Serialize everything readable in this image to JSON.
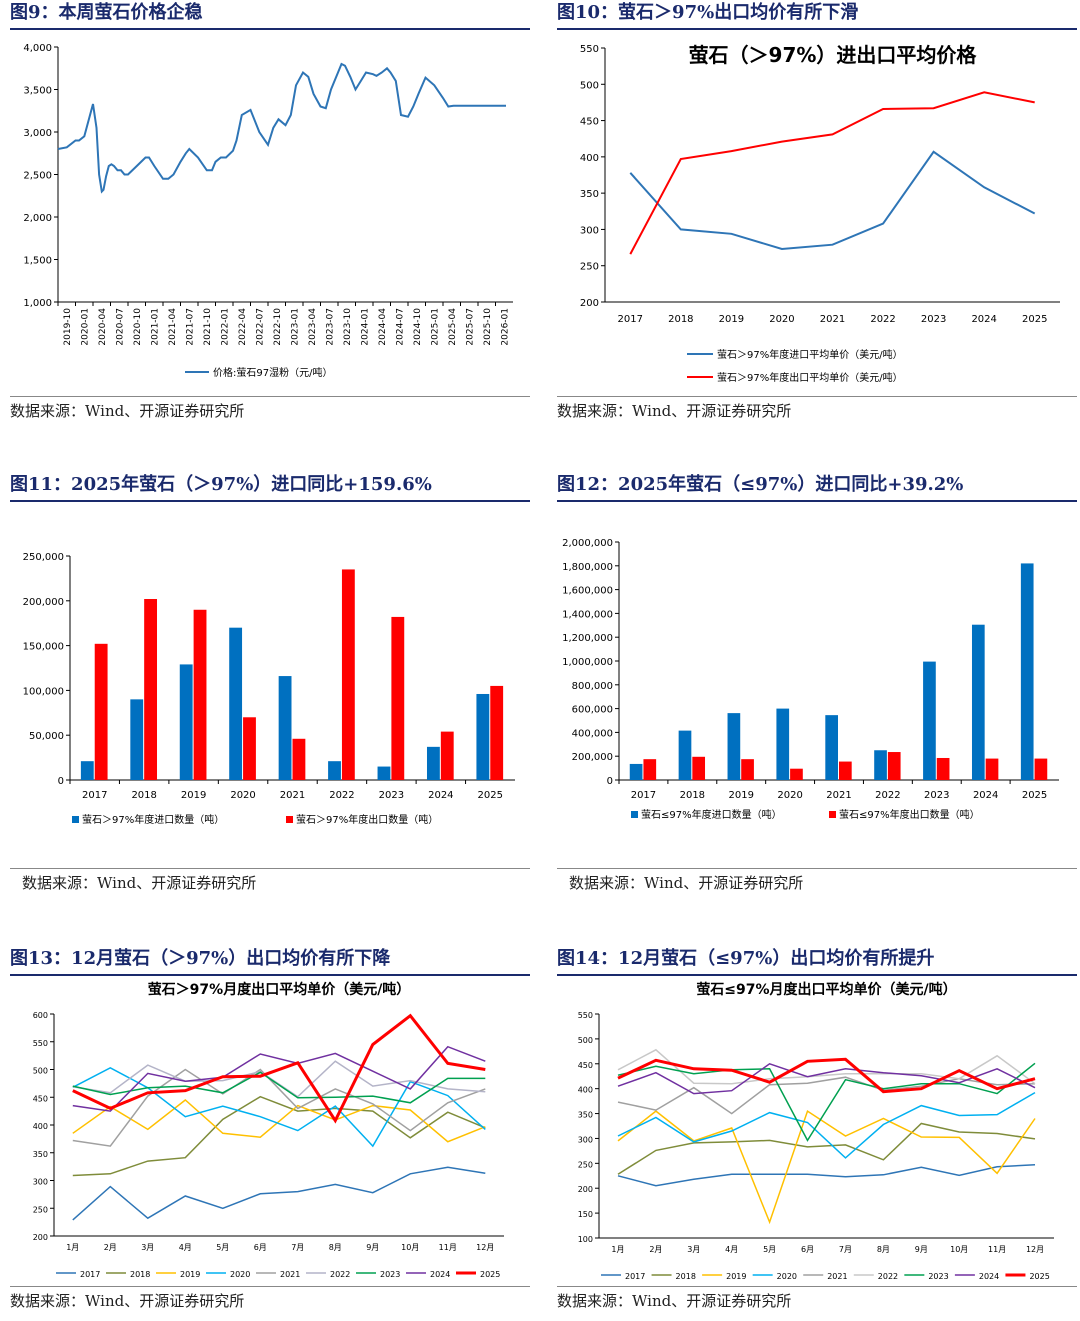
{
  "panels": {
    "fig9": {
      "title": "图9：本周萤石价格企稳",
      "source": "数据来源：Wind、开源证券研究所"
    },
    "fig10": {
      "title": "图10：萤石＞97%出口均价有所下滑",
      "source": "数据来源：Wind、开源证券研究所"
    },
    "fig11": {
      "title": "图11：2025年萤石（＞97%）进口同比+159.6%",
      "source": "数据来源：Wind、开源证券研究所"
    },
    "fig12": {
      "title": "图12：2025年萤石（≤97%）进口同比+39.2%",
      "source": "数据来源：Wind、开源证券研究所"
    },
    "fig13": {
      "title": "图13：12月萤石（＞97%）出口均价有所下降",
      "source": "数据来源：Wind、开源证券研究所"
    },
    "fig14": {
      "title": "图14：12月萤石（≤97%）出口均价有所提升",
      "source": "数据来源：Wind、开源证券研究所"
    }
  },
  "chart_data": [
    {
      "id": "fig9",
      "type": "line",
      "title": "",
      "ylim": [
        1000,
        4000
      ],
      "yticks": [
        1000,
        1500,
        2000,
        2500,
        3000,
        3500,
        4000
      ],
      "ytick_labels": [
        "1,000",
        "1,500",
        "2,000",
        "2,500",
        "3,000",
        "3,500",
        "4,000"
      ],
      "x_labels": [
        "2019-10",
        "2020-01",
        "2020-04",
        "2020-07",
        "2020-10",
        "2021-01",
        "2021-04",
        "2021-07",
        "2021-10",
        "2022-01",
        "2022-04",
        "2022-07",
        "2022-10",
        "2023-01",
        "2023-04",
        "2023-07",
        "2023-10",
        "2024-01",
        "2024-04",
        "2024-07",
        "2024-10",
        "2025-01",
        "2025-04",
        "2025-07",
        "2025-10",
        "2026-01"
      ],
      "x_range": [
        0,
        26
      ],
      "series": [
        {
          "name": "价格:萤石97湿粉（元/吨）",
          "color": "#2e75b6",
          "x": [
            0,
            0.5,
            1,
            1.2,
            1.5,
            2,
            2.2,
            2.35,
            2.5,
            2.6,
            2.75,
            2.9,
            3.05,
            3.2,
            3.4,
            3.6,
            3.8,
            4,
            4.5,
            5,
            5.2,
            5.5,
            6,
            6.3,
            6.6,
            7,
            7.3,
            7.5,
            8,
            8.5,
            8.8,
            9,
            9.3,
            9.6,
            10,
            10.2,
            10.5,
            11,
            11.5,
            12,
            12.3,
            12.6,
            13,
            13.3,
            13.6,
            14,
            14.3,
            14.6,
            15,
            15.3,
            15.6,
            16,
            16.2,
            16.4,
            16.7,
            17,
            17.3,
            17.6,
            18,
            18.2,
            18.5,
            18.8,
            19,
            19.3,
            19.6,
            20,
            20.3,
            20.6,
            21,
            21.5,
            22,
            22.3,
            22.6,
            23,
            23.2,
            23.5,
            23.7,
            24,
            24.3,
            24.6,
            25,
            25.3,
            25.6
          ],
          "y": [
            2800,
            2820,
            2900,
            2900,
            2950,
            3330,
            3050,
            2500,
            2300,
            2320,
            2480,
            2600,
            2620,
            2600,
            2550,
            2550,
            2500,
            2500,
            2600,
            2700,
            2700,
            2600,
            2450,
            2450,
            2500,
            2650,
            2750,
            2800,
            2700,
            2550,
            2550,
            2650,
            2700,
            2700,
            2780,
            2900,
            3200,
            3260,
            3000,
            2850,
            3050,
            3150,
            3080,
            3200,
            3550,
            3700,
            3650,
            3450,
            3300,
            3280,
            3500,
            3700,
            3800,
            3780,
            3650,
            3500,
            3600,
            3700,
            3680,
            3660,
            3700,
            3750,
            3700,
            3600,
            3200,
            3180,
            3300,
            3450,
            3640,
            3550,
            3400,
            3300,
            3310,
            3310,
            3310,
            3310,
            3310,
            3310,
            3310,
            3310,
            3310,
            3310,
            3310
          ]
        }
      ]
    },
    {
      "id": "fig10",
      "type": "line",
      "title": "萤石（＞97%）进出口平均价格",
      "ylim": [
        200,
        550
      ],
      "yticks": [
        200,
        250,
        300,
        350,
        400,
        450,
        500,
        550
      ],
      "categories": [
        "2017",
        "2018",
        "2019",
        "2020",
        "2021",
        "2022",
        "2023",
        "2024",
        "2025"
      ],
      "series": [
        {
          "name": "萤石＞97%年度进口平均单价（美元/吨）",
          "color": "#2e75b6",
          "values": [
            378,
            300,
            294,
            273,
            279,
            308,
            407,
            358,
            322
          ]
        },
        {
          "name": "萤石＞97%年度出口平均单价（美元/吨）",
          "color": "#ff0000",
          "values": [
            266,
            397,
            408,
            421,
            431,
            466,
            467,
            489,
            475
          ]
        }
      ]
    },
    {
      "id": "fig11",
      "type": "bar",
      "title": "",
      "ylim": [
        0,
        250000
      ],
      "yticks": [
        0,
        50000,
        100000,
        150000,
        200000,
        250000
      ],
      "ytick_labels": [
        "0",
        "50,000",
        "100,000",
        "150,000",
        "200,000",
        "250,000"
      ],
      "categories": [
        "2017",
        "2018",
        "2019",
        "2020",
        "2021",
        "2022",
        "2023",
        "2024",
        "2025"
      ],
      "series": [
        {
          "name": "萤石＞97%年度进口数量（吨）",
          "color": "#0070c0",
          "values": [
            21000,
            90000,
            129000,
            170000,
            116000,
            21000,
            15000,
            37000,
            96000
          ]
        },
        {
          "name": "萤石＞97%年度出口数量（吨）",
          "color": "#ff0000",
          "values": [
            152000,
            202000,
            190000,
            70000,
            46000,
            235000,
            182000,
            54000,
            105000
          ]
        }
      ]
    },
    {
      "id": "fig12",
      "type": "bar",
      "title": "",
      "ylim": [
        0,
        2000000
      ],
      "yticks": [
        0,
        200000,
        400000,
        600000,
        800000,
        1000000,
        1200000,
        1400000,
        1600000,
        1800000,
        2000000
      ],
      "ytick_labels": [
        "0",
        "200,000",
        "400,000",
        "600,000",
        "800,000",
        "1,000,000",
        "1,200,000",
        "1,400,000",
        "1,600,000",
        "1,800,000",
        "2,000,000"
      ],
      "categories": [
        "2017",
        "2018",
        "2019",
        "2020",
        "2021",
        "2022",
        "2023",
        "2024",
        "2025"
      ],
      "series": [
        {
          "name": "萤石≤97%年度进口数量（吨）",
          "color": "#0070c0",
          "values": [
            135000,
            415000,
            562000,
            600000,
            545000,
            250000,
            995000,
            1305000,
            1820000
          ]
        },
        {
          "name": "萤石≤97%年度出口数量（吨）",
          "color": "#ff0000",
          "values": [
            175000,
            195000,
            175000,
            95000,
            155000,
            235000,
            185000,
            180000,
            180000
          ]
        }
      ]
    },
    {
      "id": "fig13",
      "type": "line",
      "title": "萤石＞97%月度出口平均单价（美元/吨）",
      "ylim": [
        200,
        600
      ],
      "yticks": [
        200,
        250,
        300,
        350,
        400,
        450,
        500,
        550,
        600
      ],
      "categories": [
        "1月",
        "2月",
        "3月",
        "4月",
        "5月",
        "6月",
        "7月",
        "8月",
        "9月",
        "10月",
        "11月",
        "12月"
      ],
      "series": [
        {
          "name": "2017",
          "color": "#2e75b6",
          "values": [
            229,
            289,
            232,
            272,
            250,
            276,
            280,
            293,
            278,
            312,
            324,
            313
          ]
        },
        {
          "name": "2018",
          "color": "#7f8c3a",
          "values": [
            309,
            312,
            335,
            341,
            410,
            451,
            425,
            430,
            425,
            377,
            423,
            395
          ]
        },
        {
          "name": "2019",
          "color": "#ffc000",
          "values": [
            385,
            433,
            392,
            445,
            385,
            378,
            435,
            409,
            435,
            427,
            370,
            397
          ]
        },
        {
          "name": "2020",
          "color": "#00b0f0",
          "values": [
            468,
            503,
            467,
            415,
            434,
            415,
            390,
            434,
            362,
            478,
            453,
            392
          ]
        },
        {
          "name": "2021",
          "color": "#a0a0a0",
          "values": [
            372,
            362,
            452,
            500,
            456,
            500,
            430,
            465,
            438,
            390,
            440,
            465
          ]
        },
        {
          "name": "2022",
          "color": "#b4b4c8",
          "values": [
            469,
            458,
            508,
            479,
            480,
            496,
            451,
            515,
            470,
            480,
            465,
            460
          ]
        },
        {
          "name": "2023",
          "color": "#00a050",
          "values": [
            470,
            455,
            467,
            470,
            458,
            495,
            449,
            450,
            452,
            440,
            484,
            484
          ]
        },
        {
          "name": "2024",
          "color": "#7030a0",
          "values": [
            435,
            425,
            493,
            479,
            486,
            528,
            511,
            529,
            497,
            465,
            541,
            515
          ]
        },
        {
          "name": "2025",
          "color": "#ff0000",
          "values": [
            462,
            430,
            458,
            462,
            487,
            488,
            512,
            408,
            545,
            597,
            511,
            500
          ]
        }
      ]
    },
    {
      "id": "fig14",
      "type": "line",
      "title": "萤石≤97%月度出口平均单价（美元/吨）",
      "ylim": [
        100,
        550
      ],
      "yticks": [
        100,
        150,
        200,
        250,
        300,
        350,
        400,
        450,
        500,
        550
      ],
      "categories": [
        "1月",
        "2月",
        "3月",
        "4月",
        "5月",
        "6月",
        "7月",
        "8月",
        "9月",
        "10月",
        "11月",
        "12月"
      ],
      "series": [
        {
          "name": "2017",
          "color": "#2e75b6",
          "values": [
            225,
            205,
            218,
            228,
            228,
            228,
            223,
            227,
            242,
            226,
            243,
            247
          ]
        },
        {
          "name": "2018",
          "color": "#7f8c3a",
          "values": [
            228,
            276,
            291,
            293,
            296,
            283,
            287,
            257,
            330,
            313,
            310,
            299
          ]
        },
        {
          "name": "2019",
          "color": "#ffc000",
          "values": [
            295,
            355,
            295,
            321,
            132,
            355,
            305,
            340,
            303,
            302,
            230,
            340
          ]
        },
        {
          "name": "2020",
          "color": "#00b0f0",
          "values": [
            305,
            342,
            293,
            315,
            352,
            332,
            261,
            328,
            366,
            346,
            348,
            392
          ]
        },
        {
          "name": "2021",
          "color": "#a0a0a0",
          "values": [
            373,
            357,
            402,
            350,
            408,
            411,
            423,
            397,
            405,
            420,
            408,
            410
          ]
        },
        {
          "name": "2022",
          "color": "#c8c8c8",
          "values": [
            438,
            478,
            411,
            410,
            420,
            424,
            430,
            430,
            430,
            420,
            466,
            410
          ]
        },
        {
          "name": "2023",
          "color": "#00a050",
          "values": [
            427,
            445,
            430,
            438,
            440,
            296,
            418,
            400,
            410,
            410,
            390,
            451
          ]
        },
        {
          "name": "2024",
          "color": "#7030a0",
          "values": [
            405,
            432,
            390,
            396,
            450,
            424,
            440,
            432,
            426,
            412,
            440,
            402
          ]
        },
        {
          "name": "2025",
          "color": "#ff0000",
          "values": [
            421,
            457,
            440,
            437,
            413,
            455,
            459,
            394,
            400,
            436,
            400,
            420
          ]
        }
      ]
    }
  ]
}
